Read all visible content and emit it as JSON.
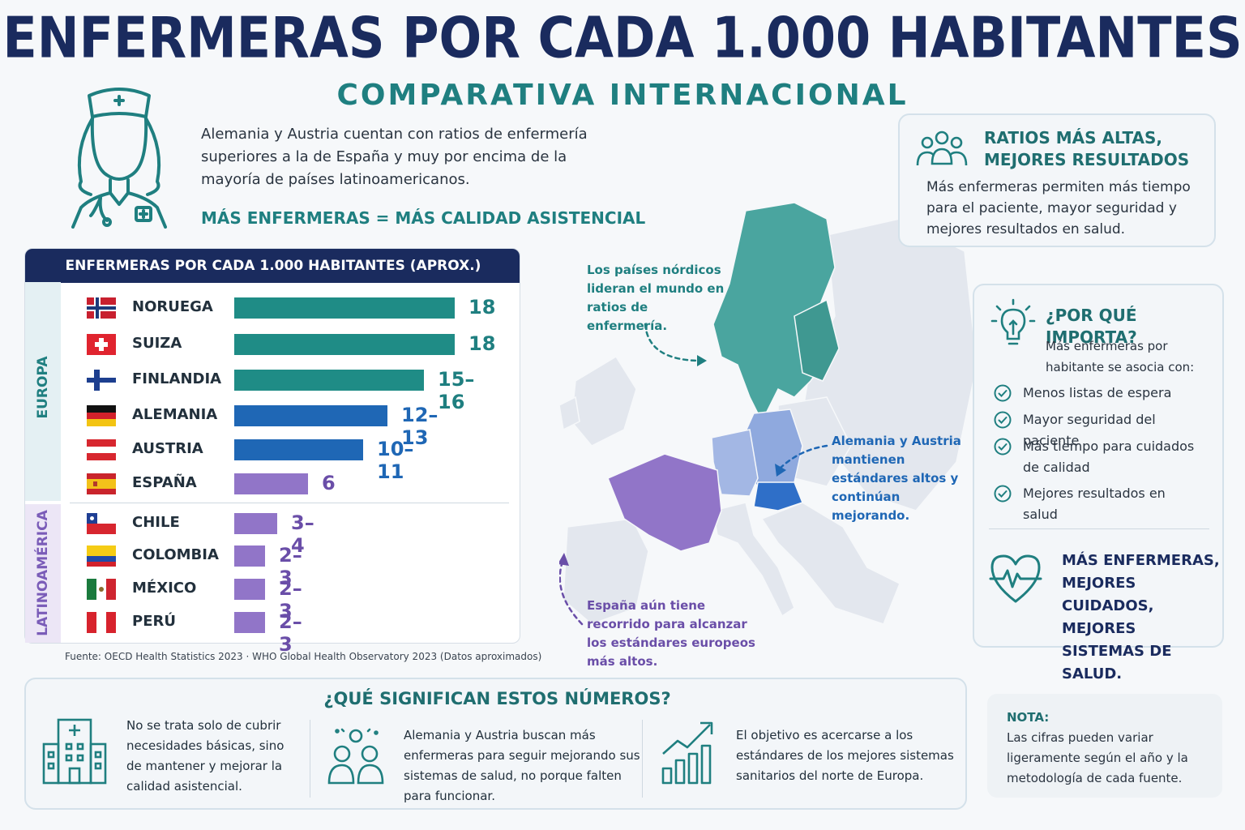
{
  "header": {
    "title": "ENFERMERAS POR CADA 1.000 HABITANTES",
    "subtitle": "COMPARATIVA INTERNACIONAL",
    "intro": "Alemania y Austria cuentan con ratios de enfermería superiores a la de España y muy por encima de la mayoría de países latinoamericanos.",
    "claim": "MÁS ENFERMERAS = MÁS CALIDAD ASISTENCIAL"
  },
  "icons": {
    "nurse": "nurse-icon",
    "people": "people-icon",
    "lightbulb": "lightbulb-icon",
    "check": "check-circle-icon",
    "heart": "heart-pulse-icon",
    "hospital": "hospital-icon",
    "family": "family-icon",
    "growth": "growth-chart-icon"
  },
  "colors": {
    "navy": "#1a2b5e",
    "teal": "#1f8c86",
    "blue": "#1f67b5",
    "purple": "#9175c8",
    "purple_text": "#6a4ea8",
    "blue_text": "#1f67b5",
    "teal_text": "#1f7f80"
  },
  "chart_data": {
    "type": "bar",
    "orientation": "horizontal",
    "title": "ENFERMERAS POR CADA 1.000 HABITANTES (APROX.)",
    "groups": [
      {
        "name": "EUROPA",
        "rows": [
          {
            "country": "NORUEGA",
            "value": 18,
            "label": "18",
            "color": "teal",
            "flag": "norway-flag"
          },
          {
            "country": "SUIZA",
            "value": 18,
            "label": "18",
            "color": "teal",
            "flag": "switzerland-flag"
          },
          {
            "country": "FINLANDIA",
            "value": 15.5,
            "label": "15–16",
            "color": "teal",
            "flag": "finland-flag"
          },
          {
            "country": "ALEMANIA",
            "value": 12.5,
            "label": "12–13",
            "color": "blue",
            "flag": "germany-flag"
          },
          {
            "country": "AUSTRIA",
            "value": 10.5,
            "label": "10–11",
            "color": "blue",
            "flag": "austria-flag"
          },
          {
            "country": "ESPAÑA",
            "value": 6,
            "label": "6",
            "color": "purple",
            "flag": "spain-flag"
          }
        ]
      },
      {
        "name": "LATINOAMÉRICA",
        "rows": [
          {
            "country": "CHILE",
            "value": 3.5,
            "label": "3–4",
            "color": "purple",
            "flag": "chile-flag"
          },
          {
            "country": "COLOMBIA",
            "value": 2.5,
            "label": "2–3",
            "color": "purple",
            "flag": "colombia-flag"
          },
          {
            "country": "MÉXICO",
            "value": 2.5,
            "label": "2–3",
            "color": "purple",
            "flag": "mexico-flag"
          },
          {
            "country": "PERÚ",
            "value": 2.5,
            "label": "2–3",
            "color": "purple",
            "flag": "peru-flag"
          }
        ]
      }
    ],
    "xlim": [
      0,
      20
    ],
    "grid": false,
    "source": "Fuente: OECD Health Statistics 2023  ·  WHO Global Health Observatory 2023  (Datos aproximados)"
  },
  "map": {
    "note_nordic": "Los países nórdicos lideran el mundo en ratios de enfermería.",
    "note_germany": "Alemania y Austria mantienen estándares altos y continúan mejorando.",
    "note_spain": "España aún tiene recorrido para alcanzar los estándares europeos más altos."
  },
  "ratios_box": {
    "title_line1": "RATIOS MÁS ALTAS,",
    "title_line2": "MEJORES RESULTADOS",
    "text": "Más enfermeras permiten más tiempo para el paciente, mayor seguridad y mejores resultados en salud."
  },
  "why_box": {
    "title": "¿POR QUÉ IMPORTA?",
    "lead": "Más enfermeras por habitante se asocia con:",
    "items": [
      "Menos listas de espera",
      "Mayor seguridad del paciente",
      "Más tiempo para cuidados de calidad",
      "Mejores resultados en salud"
    ],
    "closing": "MÁS ENFERMERAS, MEJORES CUIDADOS, MEJORES SISTEMAS DE SALUD."
  },
  "bottom": {
    "title": "¿QUÉ SIGNIFICAN ESTOS NÚMEROS?",
    "col1": "No se trata solo de cubrir necesidades básicas, sino de mantener y mejorar la calidad asistencial.",
    "col2": "Alemania y Austria buscan más enfermeras para seguir mejorando sus sistemas de salud, no porque falten para funcionar.",
    "col3": "El objetivo es acercarse a los estándares de los mejores sistemas sanitarios del norte de Europa."
  },
  "note": {
    "title": "NOTA:",
    "text": "Las cifras pueden variar ligeramente según el año y la metodología de cada fuente."
  }
}
